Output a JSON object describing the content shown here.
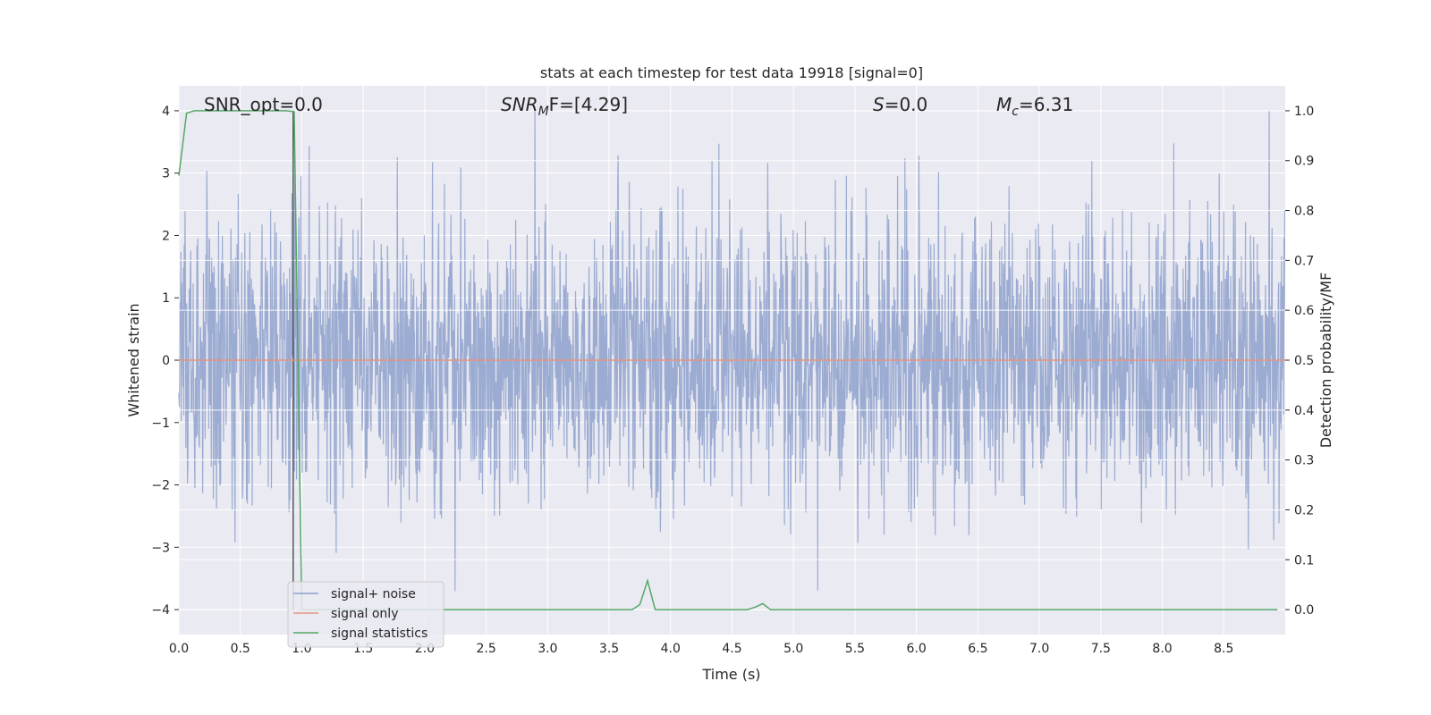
{
  "chart_data": {
    "type": "line",
    "title": "stats at each timestep for test data 19918 [signal=0]",
    "xlabel": "Time (s)",
    "ylabel": "Whitened strain",
    "y2label": "Detection probability/MF",
    "xlim": [
      0.0,
      9.0
    ],
    "ylim": [
      -4.4,
      4.4
    ],
    "y2lim": [
      -0.05,
      1.05
    ],
    "xticks": [
      "0.0",
      "0.5",
      "1.0",
      "1.5",
      "2.0",
      "2.5",
      "3.0",
      "3.5",
      "4.0",
      "4.5",
      "5.0",
      "5.5",
      "6.0",
      "6.5",
      "7.0",
      "7.5",
      "8.0",
      "8.5"
    ],
    "yticks": [
      "−4",
      "−3",
      "−2",
      "−1",
      "0",
      "1",
      "2",
      "3",
      "4"
    ],
    "y2ticks": [
      "0.0",
      "0.1",
      "0.2",
      "0.3",
      "0.4",
      "0.5",
      "0.6",
      "0.7",
      "0.8",
      "0.9",
      "1.0"
    ],
    "grid": true,
    "legend_position": "lower-left",
    "annotations": {
      "snr_opt": "SNR_opt=0.0",
      "snr_mf_main": "SNR",
      "snr_mf_sub": "M",
      "snr_mf_rest": "F=[4.29]",
      "s_var": "S",
      "s_val": "=0.0",
      "mc_var": "M",
      "mc_sub": "c",
      "mc_val": "=6.31"
    },
    "series": [
      {
        "name": "signal+ noise",
        "color": "#8da0cb",
        "axis": "left",
        "kind": "noise",
        "sample_rate_hz": 300,
        "envelope_abs": 4.0
      },
      {
        "name": "signal only",
        "color": "#e8957a",
        "axis": "left",
        "x": [
          0.0,
          9.0
        ],
        "y": [
          0.0,
          0.0
        ]
      },
      {
        "name": "signal statistics",
        "color": "#55a868",
        "axis": "right",
        "x": [
          0.0,
          0.0625,
          0.125,
          0.1875,
          0.25,
          0.3125,
          0.375,
          0.4375,
          0.5,
          0.5625,
          0.625,
          0.6875,
          0.75,
          0.8125,
          0.875,
          0.9375,
          1.0,
          1.0625,
          1.125,
          1.1875,
          1.25,
          1.3125,
          1.375,
          1.4375,
          1.5,
          1.5625,
          1.625,
          1.6875,
          1.75,
          1.8125,
          1.875,
          1.9375,
          2.0,
          2.0625,
          2.125,
          2.1875,
          2.25,
          2.3125,
          2.375,
          2.4375,
          2.5,
          2.5625,
          2.625,
          2.6875,
          2.75,
          2.8125,
          2.875,
          2.9375,
          3.0,
          3.0625,
          3.125,
          3.1875,
          3.25,
          3.3125,
          3.375,
          3.4375,
          3.5,
          3.5625,
          3.625,
          3.6875,
          3.75,
          3.8125,
          3.875,
          3.9375,
          4.0,
          4.0625,
          4.125,
          4.1875,
          4.25,
          4.3125,
          4.375,
          4.4375,
          4.5,
          4.5625,
          4.625,
          4.6875,
          4.75,
          4.8125,
          4.875,
          4.9375,
          5.0,
          5.0625,
          5.125,
          5.1875,
          5.25,
          5.3125,
          5.375,
          5.4375,
          5.5,
          5.5625,
          5.625,
          5.6875,
          5.75,
          5.8125,
          5.875,
          5.9375,
          6.0,
          6.0625,
          6.125,
          6.1875,
          6.25,
          6.3125,
          6.375,
          6.4375,
          6.5,
          6.5625,
          6.625,
          6.6875,
          6.75,
          6.8125,
          6.875,
          6.9375,
          7.0,
          7.0625,
          7.125,
          7.1875,
          7.25,
          7.3125,
          7.375,
          7.4375,
          7.5,
          7.5625,
          7.625,
          7.6875,
          7.75,
          7.8125,
          7.875,
          7.9375,
          8.0,
          8.0625,
          8.125,
          8.1875,
          8.25,
          8.3125,
          8.375,
          8.4375,
          8.5,
          8.5625,
          8.625,
          8.6875,
          8.75,
          8.8125,
          8.875,
          8.9375
        ],
        "y": [
          0.87,
          0.995,
          1.0,
          1.0,
          1.0,
          1.0,
          1.0,
          1.0,
          1.0,
          1.0,
          1.0,
          1.0,
          1.0,
          1.0,
          1.0,
          0.998,
          0.0,
          0.0,
          0.0,
          0.0,
          0.0,
          0.0,
          0.0,
          0.0,
          0.0,
          0.0,
          0.0,
          0.0,
          0.0,
          0.0,
          0.0,
          0.0,
          0.0,
          0.0,
          0.0,
          0.0,
          0.0,
          0.0,
          0.0,
          0.0,
          0.0,
          0.0,
          0.0,
          0.0,
          0.0,
          0.0,
          0.0,
          0.0,
          0.0,
          0.0,
          0.0,
          0.0,
          0.0,
          0.0,
          0.0,
          0.0,
          0.0,
          0.0,
          0.0,
          0.0,
          0.01,
          0.058,
          0.0,
          0.0,
          0.0,
          0.0,
          0.0,
          0.0,
          0.0,
          0.0,
          0.0,
          0.0,
          0.0,
          0.0,
          0.0,
          0.005,
          0.012,
          0.0,
          0.0,
          0.0,
          0.0,
          0.0,
          0.0,
          0.0,
          0.0,
          0.0,
          0.0,
          0.0,
          0.0,
          0.0,
          0.0,
          0.0,
          0.0,
          0.0,
          0.0,
          0.0,
          0.0,
          0.0,
          0.0,
          0.0,
          0.0,
          0.0,
          0.0,
          0.0,
          0.0,
          0.0,
          0.0,
          0.0,
          0.0,
          0.0,
          0.0,
          0.0,
          0.0,
          0.0,
          0.0,
          0.0,
          0.0,
          0.0,
          0.0,
          0.0,
          0.0,
          0.0,
          0.0,
          0.0,
          0.0,
          0.0,
          0.0,
          0.0,
          0.0,
          0.0,
          0.0,
          0.0,
          0.0,
          0.0,
          0.0,
          0.0,
          0.0,
          0.0,
          0.0,
          0.0,
          0.0,
          0.0,
          0.0,
          0.0
        ]
      }
    ],
    "vertical_marker_x": 0.93,
    "colors": {
      "plot_background": "#eaeaf2",
      "grid": "#ffffff",
      "marker_line": "#333333"
    }
  }
}
